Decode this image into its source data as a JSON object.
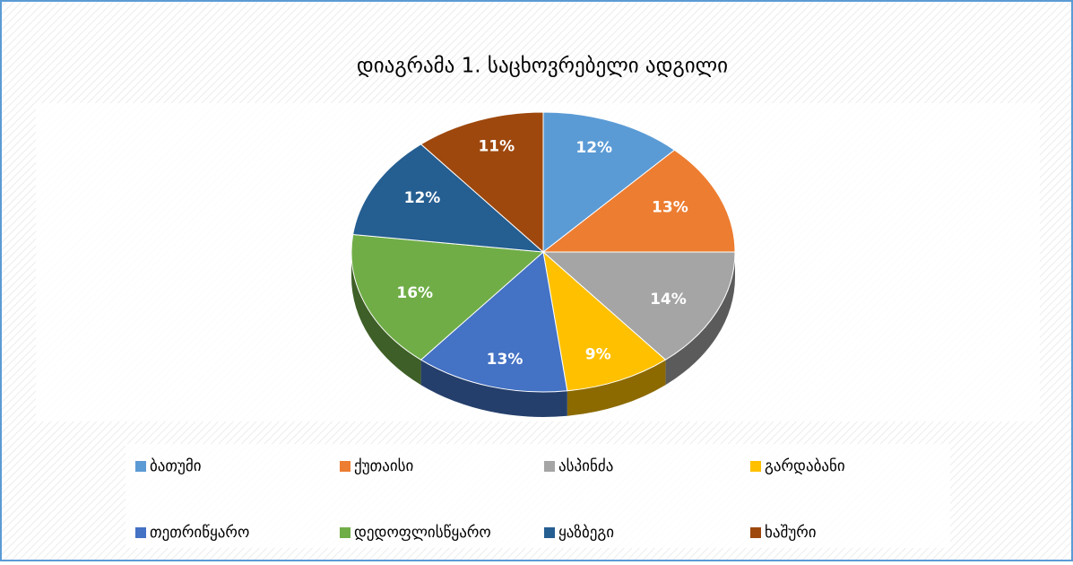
{
  "chart_data": {
    "type": "pie",
    "title": "დიაგრამა 1. საცხოვრებელი ადგილი",
    "categories": [
      "ბათუმი",
      "ქუთაისი",
      "ასპინძა",
      "გარდაბანი",
      "თეთრიწყარო",
      "დედოფლისწყარო",
      "ყაზბეგი",
      "ხაშური"
    ],
    "values": [
      12,
      13,
      14,
      9,
      13,
      16,
      12,
      11
    ],
    "value_labels": [
      "12%",
      "13%",
      "14%",
      "9%",
      "13%",
      "16%",
      "12%",
      "11%"
    ],
    "colors": [
      "#5b9bd5",
      "#ed7d31",
      "#a5a5a5",
      "#ffc000",
      "#4472c4",
      "#70ad47",
      "#255e91",
      "#9e480e"
    ],
    "legend": "bottom"
  }
}
